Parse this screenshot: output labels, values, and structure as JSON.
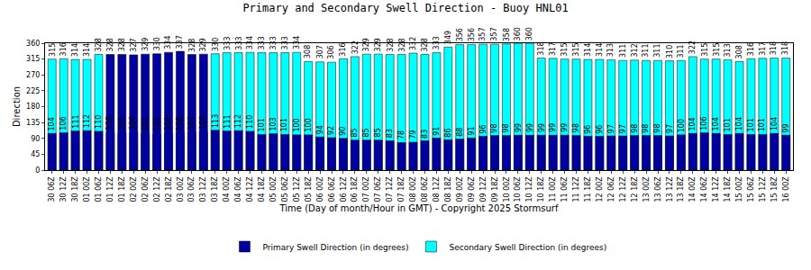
{
  "chart_data": {
    "type": "bar",
    "title": "Primary and Secondary Swell Direction - Buoy HNL01",
    "x_label": "Time (Day of month/Hour in GMT) - Copyright 2025 Stormsurf",
    "y_label": "Direction",
    "categories": [
      "30 06Z",
      "30 12Z",
      "30 18Z",
      "01 00Z",
      "01 06Z",
      "01 12Z",
      "01 18Z",
      "02 00Z",
      "02 06Z",
      "02 12Z",
      "02 18Z",
      "03 00Z",
      "03 06Z",
      "03 12Z",
      "03 18Z",
      "04 00Z",
      "04 06Z",
      "04 12Z",
      "04 18Z",
      "05 00Z",
      "05 06Z",
      "05 12Z",
      "05 18Z",
      "06 00Z",
      "06 06Z",
      "06 12Z",
      "06 18Z",
      "07 00Z",
      "07 06Z",
      "07 12Z",
      "07 18Z",
      "08 00Z",
      "08 06Z",
      "08 12Z",
      "08 18Z",
      "09 00Z",
      "09 06Z",
      "09 12Z",
      "09 18Z",
      "10 00Z",
      "10 06Z",
      "10 12Z",
      "10 18Z",
      "11 00Z",
      "11 06Z",
      "11 12Z",
      "11 18Z",
      "12 00Z",
      "12 06Z",
      "12 12Z",
      "12 18Z",
      "13 00Z",
      "13 06Z",
      "13 12Z",
      "13 18Z",
      "14 00Z",
      "14 06Z",
      "14 12Z",
      "14 18Z",
      "15 00Z",
      "15 06Z",
      "15 12Z",
      "15 18Z",
      "16 00Z"
    ],
    "series": [
      {
        "name": "Primary Swell Direction (in degrees)",
        "color": "#0000a0",
        "values": [
          104,
          106,
          111,
          112,
          110,
          328,
          328,
          327,
          329,
          330,
          334,
          337,
          328,
          329,
          113,
          111,
          112,
          110,
          101,
          103,
          101,
          100,
          100,
          94,
          92,
          90,
          85,
          85,
          85,
          83,
          78,
          79,
          83,
          91,
          86,
          88,
          91,
          96,
          98,
          98,
          99,
          99,
          99,
          99,
          99,
          98,
          96,
          96,
          97,
          97,
          98,
          98,
          98,
          97,
          100,
          104,
          106,
          104,
          101,
          104,
          101,
          101,
          104,
          99
        ]
      },
      {
        "name": "Secondary Swell Direction (in degrees)",
        "color": "#00ffff",
        "values": [
          315,
          316,
          314,
          314,
          328,
          106,
          105,
          106,
          103,
          102,
          104,
          106,
          107,
          109,
          330,
          333,
          333,
          334,
          333,
          333,
          333,
          334,
          308,
          307,
          306,
          316,
          322,
          329,
          329,
          328,
          328,
          332,
          328,
          333,
          349,
          356,
          356,
          357,
          357,
          358,
          360,
          360,
          318,
          317,
          315,
          315,
          314,
          314,
          313,
          311,
          312,
          311,
          311,
          310,
          311,
          322,
          315,
          315,
          313,
          308,
          316,
          317,
          318,
          318
        ]
      }
    ],
    "ylim": [
      0,
      360
    ],
    "yticks": [
      0,
      45,
      90,
      135,
      180,
      225,
      270,
      315,
      360
    ],
    "grid": false,
    "legend": "bottom",
    "data_labels": true
  }
}
